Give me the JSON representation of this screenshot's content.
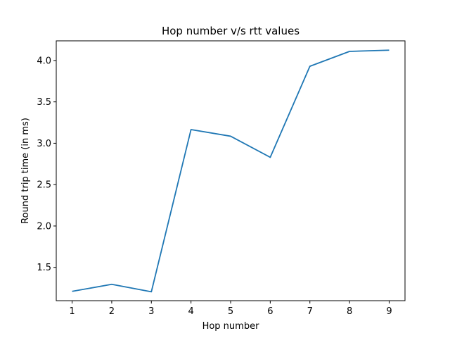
{
  "chart_data": {
    "type": "line",
    "title": "Hop number v/s rtt values",
    "xlabel": "Hop number",
    "ylabel": "Round trip time (in ms)",
    "x": [
      1,
      2,
      3,
      4,
      5,
      6,
      7,
      8,
      9
    ],
    "series": [
      {
        "values": [
          1.21,
          1.295,
          1.205,
          3.165,
          3.085,
          2.83,
          3.93,
          4.11,
          4.125
        ]
      }
    ],
    "xticks": [
      "1",
      "2",
      "3",
      "4",
      "5",
      "6",
      "7",
      "8",
      "9"
    ],
    "yticks": [
      "1.5",
      "2.0",
      "2.5",
      "3.0",
      "3.5",
      "4.0"
    ],
    "xlim": [
      0.6,
      9.4
    ],
    "ylim": [
      1.0975,
      4.2375
    ],
    "grid": false,
    "line_color": "#1f77b4"
  }
}
